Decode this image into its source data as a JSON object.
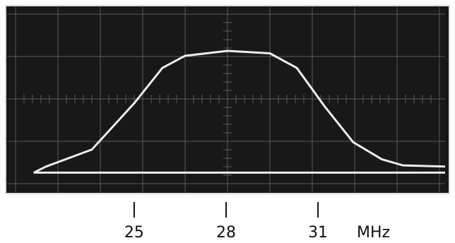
{
  "chart_data": {
    "type": "line",
    "xlabel": "MHz",
    "xlim": [
      20.85,
      35.15
    ],
    "xticks": [
      25,
      28,
      31
    ],
    "ylim": [
      -0.16,
      1.36
    ],
    "series": [
      {
        "color": "#ececec",
        "x": [
          21.72,
          22.12,
          23.62,
          25.0,
          25.92,
          26.66,
          28.05,
          29.43,
          30.31,
          31.23,
          32.15,
          33.08,
          33.77,
          35.15
        ],
        "values": [
          0,
          0.05,
          0.19,
          0.57,
          0.86,
          0.96,
          1.0,
          0.98,
          0.86,
          0.54,
          0.25,
          0.11,
          0.06,
          0.05
        ]
      },
      {
        "color": "#ececec",
        "x": [
          21.72,
          35.15
        ],
        "values": [
          0,
          0
        ]
      }
    ]
  }
}
